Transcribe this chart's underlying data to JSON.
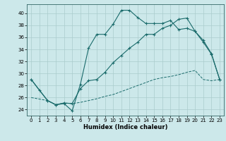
{
  "xlabel": "Humidex (Indice chaleur)",
  "bg_color": "#cce8ea",
  "grid_color": "#aacccc",
  "line_color": "#1a6b6b",
  "xlim": [
    -0.5,
    23.5
  ],
  "ylim": [
    23.0,
    41.5
  ],
  "xticks": [
    0,
    1,
    2,
    3,
    4,
    5,
    6,
    7,
    8,
    9,
    10,
    11,
    12,
    13,
    14,
    15,
    16,
    17,
    18,
    19,
    20,
    21,
    22,
    23
  ],
  "yticks": [
    24,
    26,
    28,
    30,
    32,
    34,
    36,
    38,
    40
  ],
  "series1_x": [
    0,
    1,
    2,
    3,
    4,
    5,
    6,
    7,
    8,
    9,
    10,
    11,
    12,
    13,
    14,
    15,
    16,
    17,
    18,
    19,
    20,
    21,
    22,
    23
  ],
  "series1_y": [
    29.0,
    27.2,
    25.5,
    24.8,
    25.0,
    23.8,
    28.2,
    34.2,
    36.5,
    36.5,
    38.2,
    40.5,
    40.5,
    39.3,
    38.3,
    38.3,
    38.3,
    38.8,
    37.3,
    37.5,
    37.0,
    35.5,
    33.3,
    29.0
  ],
  "series2_x": [
    0,
    2,
    3,
    4,
    5,
    6,
    7,
    8,
    9,
    10,
    11,
    12,
    13,
    14,
    15,
    16,
    17,
    18,
    19,
    20,
    21,
    22,
    23
  ],
  "series2_y": [
    29.0,
    25.5,
    24.8,
    25.1,
    25.0,
    27.5,
    28.8,
    29.0,
    30.2,
    31.8,
    33.0,
    34.2,
    35.2,
    36.5,
    36.5,
    37.5,
    38.0,
    39.0,
    39.2,
    37.0,
    35.2,
    33.2,
    29.0
  ],
  "series3_x": [
    0,
    2,
    3,
    4,
    5,
    6,
    7,
    8,
    9,
    10,
    11,
    12,
    13,
    14,
    15,
    16,
    17,
    18,
    19,
    20,
    21,
    22,
    23
  ],
  "series3_y": [
    26.0,
    25.5,
    24.8,
    25.1,
    25.0,
    25.2,
    25.5,
    25.8,
    26.2,
    26.5,
    27.0,
    27.5,
    28.0,
    28.5,
    29.0,
    29.3,
    29.5,
    29.8,
    30.2,
    30.5,
    29.0,
    28.8,
    29.0
  ]
}
